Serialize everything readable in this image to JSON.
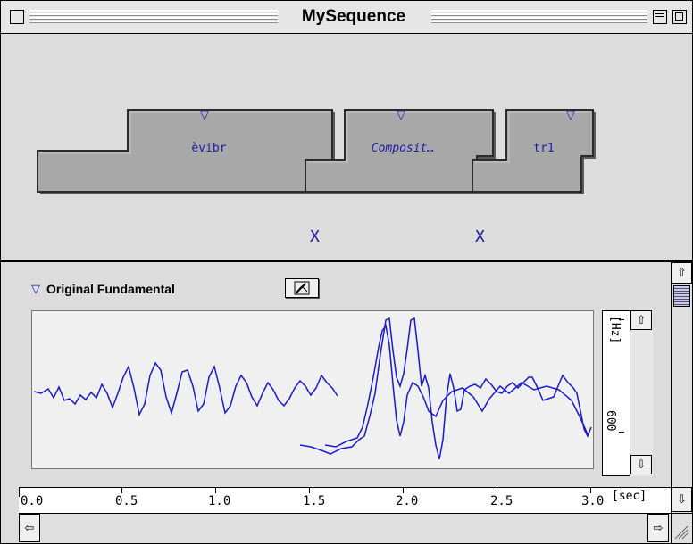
{
  "window": {
    "title": "MySequence"
  },
  "sequence": {
    "segments": [
      {
        "label": "èvibr",
        "italic": false
      },
      {
        "label": "Composit…",
        "italic": true
      },
      {
        "label": "tr1",
        "italic": false
      }
    ],
    "transition_marks": [
      "X",
      "X"
    ],
    "segment_menu_glyph": "▽"
  },
  "track": {
    "disclosure_glyph": "▽",
    "name": "Original Fundamental",
    "tool_icon": "pencil-tool-icon",
    "y_axis_unit": "[Hz]",
    "y_axis_tick": "600",
    "line_color": "#1a1ad0"
  },
  "time_axis": {
    "labels": [
      "0.0",
      "0.5",
      "1.0",
      "1.5",
      "2.0",
      "2.5",
      "3.0"
    ],
    "unit": "[sec]"
  },
  "colors": {
    "segment_fill": "#a8a8a8",
    "label_blue": "#1a1aa8",
    "curve_blue": "#1a1ad0"
  }
}
